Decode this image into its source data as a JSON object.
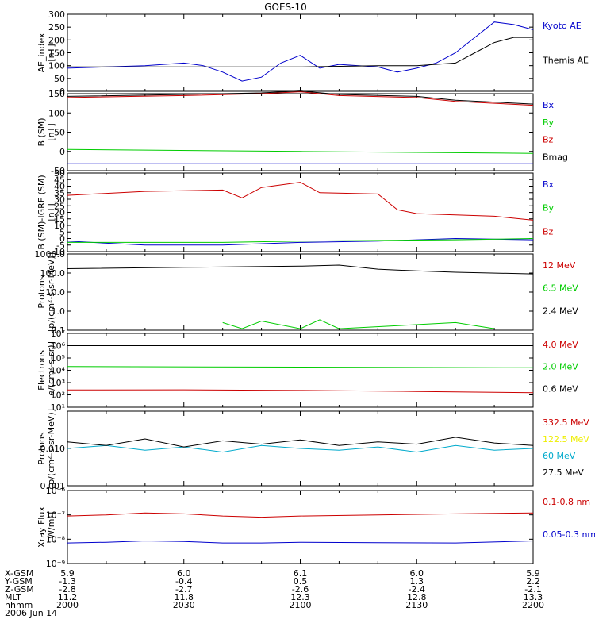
{
  "title": "GOES-10",
  "time_axis": {
    "start": 2000,
    "end": 2200,
    "ticks": [
      2000,
      2030,
      2100,
      2130,
      2200
    ]
  },
  "footer": {
    "rows": [
      {
        "label": "X-GSM",
        "values": [
          "5.9",
          "6.0",
          "6.1",
          "6.0",
          "5.9"
        ]
      },
      {
        "label": "Y-GSM",
        "values": [
          "-1.3",
          "-0.4",
          "0.5",
          "1.3",
          "2.2"
        ]
      },
      {
        "label": "Z-GSM",
        "values": [
          "-2.8",
          "-2.7",
          "-2.6",
          "-2.4",
          "-2.1"
        ]
      },
      {
        "label": "MLT",
        "values": [
          "11.2",
          "11.8",
          "12.3",
          "12.8",
          "13.3"
        ]
      },
      {
        "label": "hhmm",
        "values": [
          "2000",
          "2030",
          "2100",
          "2130",
          "2200"
        ]
      }
    ],
    "date": "2006 Jun 14"
  },
  "colors": {
    "blue": "#0000cc",
    "green": "#00cc00",
    "red": "#cc0000",
    "black": "#000000",
    "yellow": "#eeee00",
    "cyan": "#00aacc"
  },
  "chart_data": [
    {
      "type": "line",
      "id": "ae",
      "ylabel": [
        "AE_index",
        "[nT]"
      ],
      "ylim": [
        0,
        300
      ],
      "yticks": [
        0,
        50,
        100,
        150,
        200,
        250,
        300
      ],
      "series": [
        {
          "name": "Kyoto AE",
          "color": "blue",
          "x": [
            2000,
            2010,
            2020,
            2030,
            2035,
            2040,
            2045,
            2050,
            2055,
            2100,
            2105,
            2110,
            2115,
            2120,
            2125,
            2130,
            2135,
            2140,
            2145,
            2150,
            2155,
            2200
          ],
          "y": [
            90,
            95,
            100,
            110,
            100,
            75,
            40,
            55,
            110,
            140,
            90,
            105,
            100,
            95,
            75,
            90,
            110,
            150,
            210,
            270,
            260,
            240
          ]
        },
        {
          "name": "Themis AE",
          "color": "black",
          "x": [
            2000,
            2020,
            2040,
            2100,
            2120,
            2130,
            2140,
            2145,
            2150,
            2155,
            2200
          ],
          "y": [
            95,
            95,
            95,
            95,
            100,
            100,
            110,
            150,
            190,
            210,
            210
          ]
        }
      ]
    },
    {
      "type": "line",
      "id": "bsm",
      "ylabel": [
        "B (SM)",
        "[nT]"
      ],
      "ylim": [
        -50,
        150
      ],
      "yticks": [
        -50,
        0,
        50,
        100,
        150
      ],
      "series": [
        {
          "name": "Bx",
          "color": "blue",
          "x": [
            2000,
            2200
          ],
          "y": [
            -32,
            -32
          ]
        },
        {
          "name": "By",
          "color": "green",
          "x": [
            2000,
            2100,
            2200
          ],
          "y": [
            5,
            0,
            -5
          ]
        },
        {
          "name": "Bz",
          "color": "red",
          "x": [
            2000,
            2030,
            2050,
            2100,
            2110,
            2130,
            2140,
            2200
          ],
          "y": [
            140,
            145,
            150,
            155,
            145,
            140,
            130,
            120
          ]
        },
        {
          "name": "Bmag",
          "color": "black",
          "x": [
            2000,
            2030,
            2050,
            2100,
            2110,
            2130,
            2140,
            2200
          ],
          "y": [
            143,
            148,
            152,
            157,
            148,
            143,
            133,
            123
          ]
        }
      ]
    },
    {
      "type": "line",
      "id": "dbsm",
      "ylabel": [
        "B (SM)-IGRF (SM)",
        "[nT]"
      ],
      "ylim": [
        -10,
        50
      ],
      "yticks": [
        -10,
        -5,
        0,
        5,
        10,
        15,
        20,
        25,
        30,
        35,
        40,
        45,
        50
      ],
      "series": [
        {
          "name": "Bx",
          "color": "blue",
          "x": [
            2000,
            2020,
            2040,
            2100,
            2120,
            2140,
            2200
          ],
          "y": [
            -2,
            -5,
            -5,
            -3,
            -2,
            0,
            -1
          ]
        },
        {
          "name": "By",
          "color": "green",
          "x": [
            2000,
            2040,
            2100,
            2140,
            2200
          ],
          "y": [
            -3,
            -3,
            -2,
            -1,
            0
          ]
        },
        {
          "name": "Bz",
          "color": "red",
          "x": [
            2000,
            2020,
            2040,
            2045,
            2050,
            2100,
            2105,
            2120,
            2125,
            2130,
            2140,
            2150,
            2200
          ],
          "y": [
            33,
            36,
            37,
            31,
            39,
            43,
            35,
            34,
            22,
            19,
            18,
            17,
            14
          ]
        }
      ]
    },
    {
      "type": "line",
      "id": "protons1",
      "yscale": "log",
      "ylabel": [
        "Protons",
        "[p/(cm²-s-sr-MeV)]"
      ],
      "ylim": [
        0.1,
        1000
      ],
      "ytick_values": [
        0.1,
        1,
        10,
        100,
        1000
      ],
      "ytick_labels": [
        "0.1",
        "1.0",
        "10.0",
        "100.0",
        "1000.0"
      ],
      "series": [
        {
          "name": "12 MeV",
          "color": "red",
          "x": [],
          "y": []
        },
        {
          "name": "6.5 MeV",
          "color": "green",
          "x": [
            2040,
            2045,
            2050,
            2100,
            2105,
            2110,
            2140,
            2150
          ],
          "y": [
            0.25,
            0.12,
            0.3,
            0.12,
            0.35,
            0.12,
            0.25,
            0.12
          ]
        },
        {
          "name": "2.4 MeV",
          "color": "black",
          "x": [
            2000,
            2030,
            2100,
            2110,
            2120,
            2130,
            2140,
            2200
          ],
          "y": [
            170,
            200,
            230,
            260,
            160,
            130,
            110,
            90
          ]
        }
      ]
    },
    {
      "type": "line",
      "id": "electrons",
      "yscale": "log",
      "ylabel": [
        "Electrons",
        "[e/(cm²-s-sr)]"
      ],
      "ylim": [
        10,
        10000000
      ],
      "ytick_values": [
        10,
        100,
        1000,
        10000,
        100000,
        1000000,
        10000000
      ],
      "ytick_labels": [
        "10¹",
        "10²",
        "10³",
        "10⁴",
        "10⁵",
        "10⁶",
        "10⁷"
      ],
      "series": [
        {
          "name": "4.0 MeV",
          "color": "red",
          "x": [
            2000,
            2030,
            2100,
            2130,
            2200
          ],
          "y": [
            250,
            260,
            230,
            190,
            150
          ]
        },
        {
          "name": "2.0 MeV",
          "color": "green",
          "x": [
            2000,
            2100,
            2200
          ],
          "y": [
            20000,
            18000,
            16000
          ]
        },
        {
          "name": "0.6 MeV",
          "color": "black",
          "x": [
            2000,
            2200
          ],
          "y": [
            1000000,
            1000000
          ]
        }
      ]
    },
    {
      "type": "line",
      "id": "protons2",
      "yscale": "log",
      "ylabel": [
        "Protons",
        "[p/(cm²-s-sr-MeV)]"
      ],
      "ylim": [
        0.001,
        0.1
      ],
      "ytick_values": [
        0.001,
        0.01,
        0.1
      ],
      "ytick_labels": [
        "0.001",
        "0.010",
        ""
      ],
      "series": [
        {
          "name": "332.5 MeV",
          "color": "red",
          "x": [],
          "y": []
        },
        {
          "name": "122.5 MeV",
          "color": "yellow",
          "x": [],
          "y": []
        },
        {
          "name": "60 MeV",
          "color": "cyan",
          "x": [
            2000,
            2010,
            2020,
            2030,
            2040,
            2050,
            2100,
            2110,
            2120,
            2130,
            2140,
            2150,
            2200
          ],
          "y": [
            0.01,
            0.012,
            0.009,
            0.011,
            0.008,
            0.012,
            0.01,
            0.009,
            0.011,
            0.008,
            0.012,
            0.009,
            0.01
          ]
        },
        {
          "name": "27.5 MeV",
          "color": "black",
          "x": [
            2000,
            2010,
            2020,
            2030,
            2040,
            2050,
            2100,
            2110,
            2120,
            2130,
            2140,
            2150,
            2200
          ],
          "y": [
            0.015,
            0.012,
            0.018,
            0.011,
            0.016,
            0.013,
            0.017,
            0.012,
            0.015,
            0.013,
            0.02,
            0.014,
            0.012
          ]
        }
      ]
    },
    {
      "type": "line",
      "id": "xray",
      "yscale": "log",
      "ylabel": [
        "Xray Flux",
        "[W/m²]"
      ],
      "ylim": [
        1e-09,
        1e-06
      ],
      "ytick_values": [
        1e-09,
        1e-08,
        1e-07,
        1e-06
      ],
      "ytick_labels": [
        "10⁻⁹",
        "10⁻⁸",
        "10⁻⁷",
        "10⁻⁶"
      ],
      "series": [
        {
          "name": "0.1-0.8 nm",
          "color": "red",
          "x": [
            2000,
            2010,
            2020,
            2030,
            2040,
            2050,
            2100,
            2120,
            2140,
            2200
          ],
          "y": [
            9e-08,
            1e-07,
            1.2e-07,
            1.1e-07,
            9e-08,
            8e-08,
            9e-08,
            1e-07,
            1.1e-07,
            1.2e-07
          ]
        },
        {
          "name": "0.05-0.3 nm",
          "color": "blue",
          "x": [
            2000,
            2010,
            2020,
            2030,
            2040,
            2050,
            2100,
            2120,
            2140,
            2200
          ],
          "y": [
            7e-09,
            7.5e-09,
            8.5e-09,
            8e-09,
            7e-09,
            7e-09,
            7.5e-09,
            7.2e-09,
            7e-09,
            8.5e-09
          ]
        }
      ]
    }
  ]
}
